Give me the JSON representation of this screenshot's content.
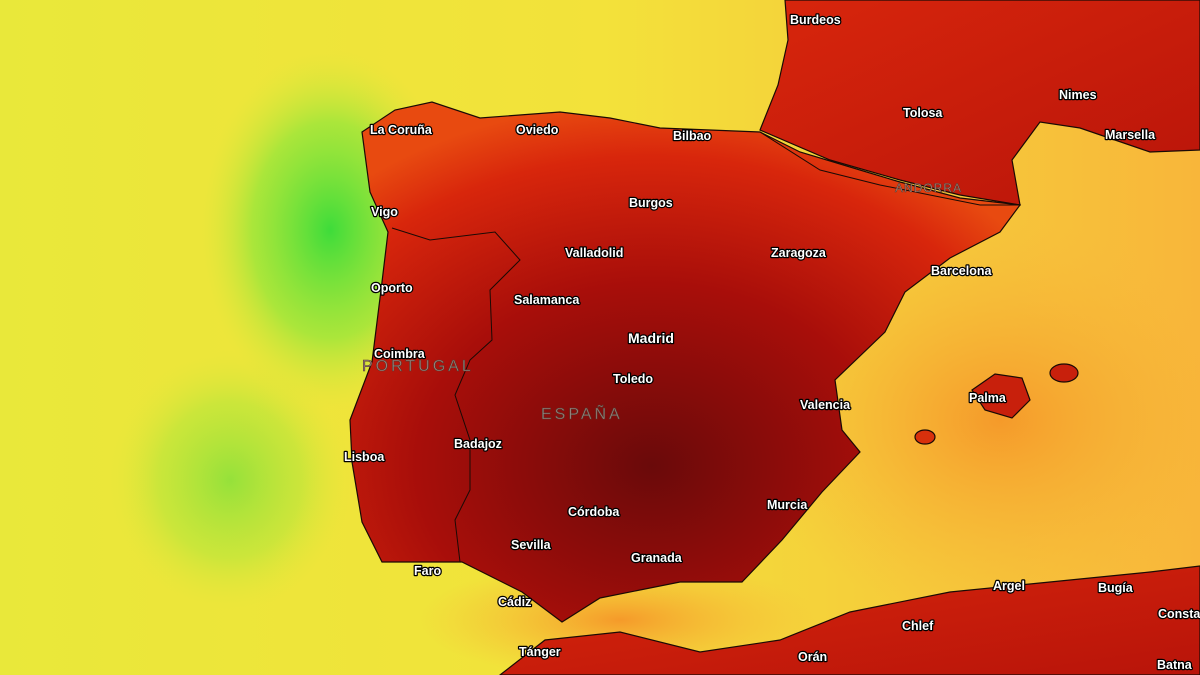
{
  "cities": [
    "Burdeos",
    "Tolosa",
    "Nimes",
    "Marsella",
    "La Coruña",
    "Oviedo",
    "Bilbao",
    "Burgos",
    "Vigo",
    "Valladolid",
    "Zaragoza",
    "Barcelona",
    "Oporto",
    "Salamanca",
    "Madrid",
    "Coimbra",
    "Toledo",
    "Valencia",
    "Palma",
    "Badajoz",
    "Lisboa",
    "Murcia",
    "Córdoba",
    "Sevilla",
    "Granada",
    "Faro",
    "Cádiz",
    "Argel",
    "Bugía",
    "Consta",
    "Chlef",
    "Orán",
    "Tánger",
    "Batna"
  ],
  "countries": [
    "ANDORRA",
    "PORTUGAL",
    "ESPAÑA"
  ]
}
